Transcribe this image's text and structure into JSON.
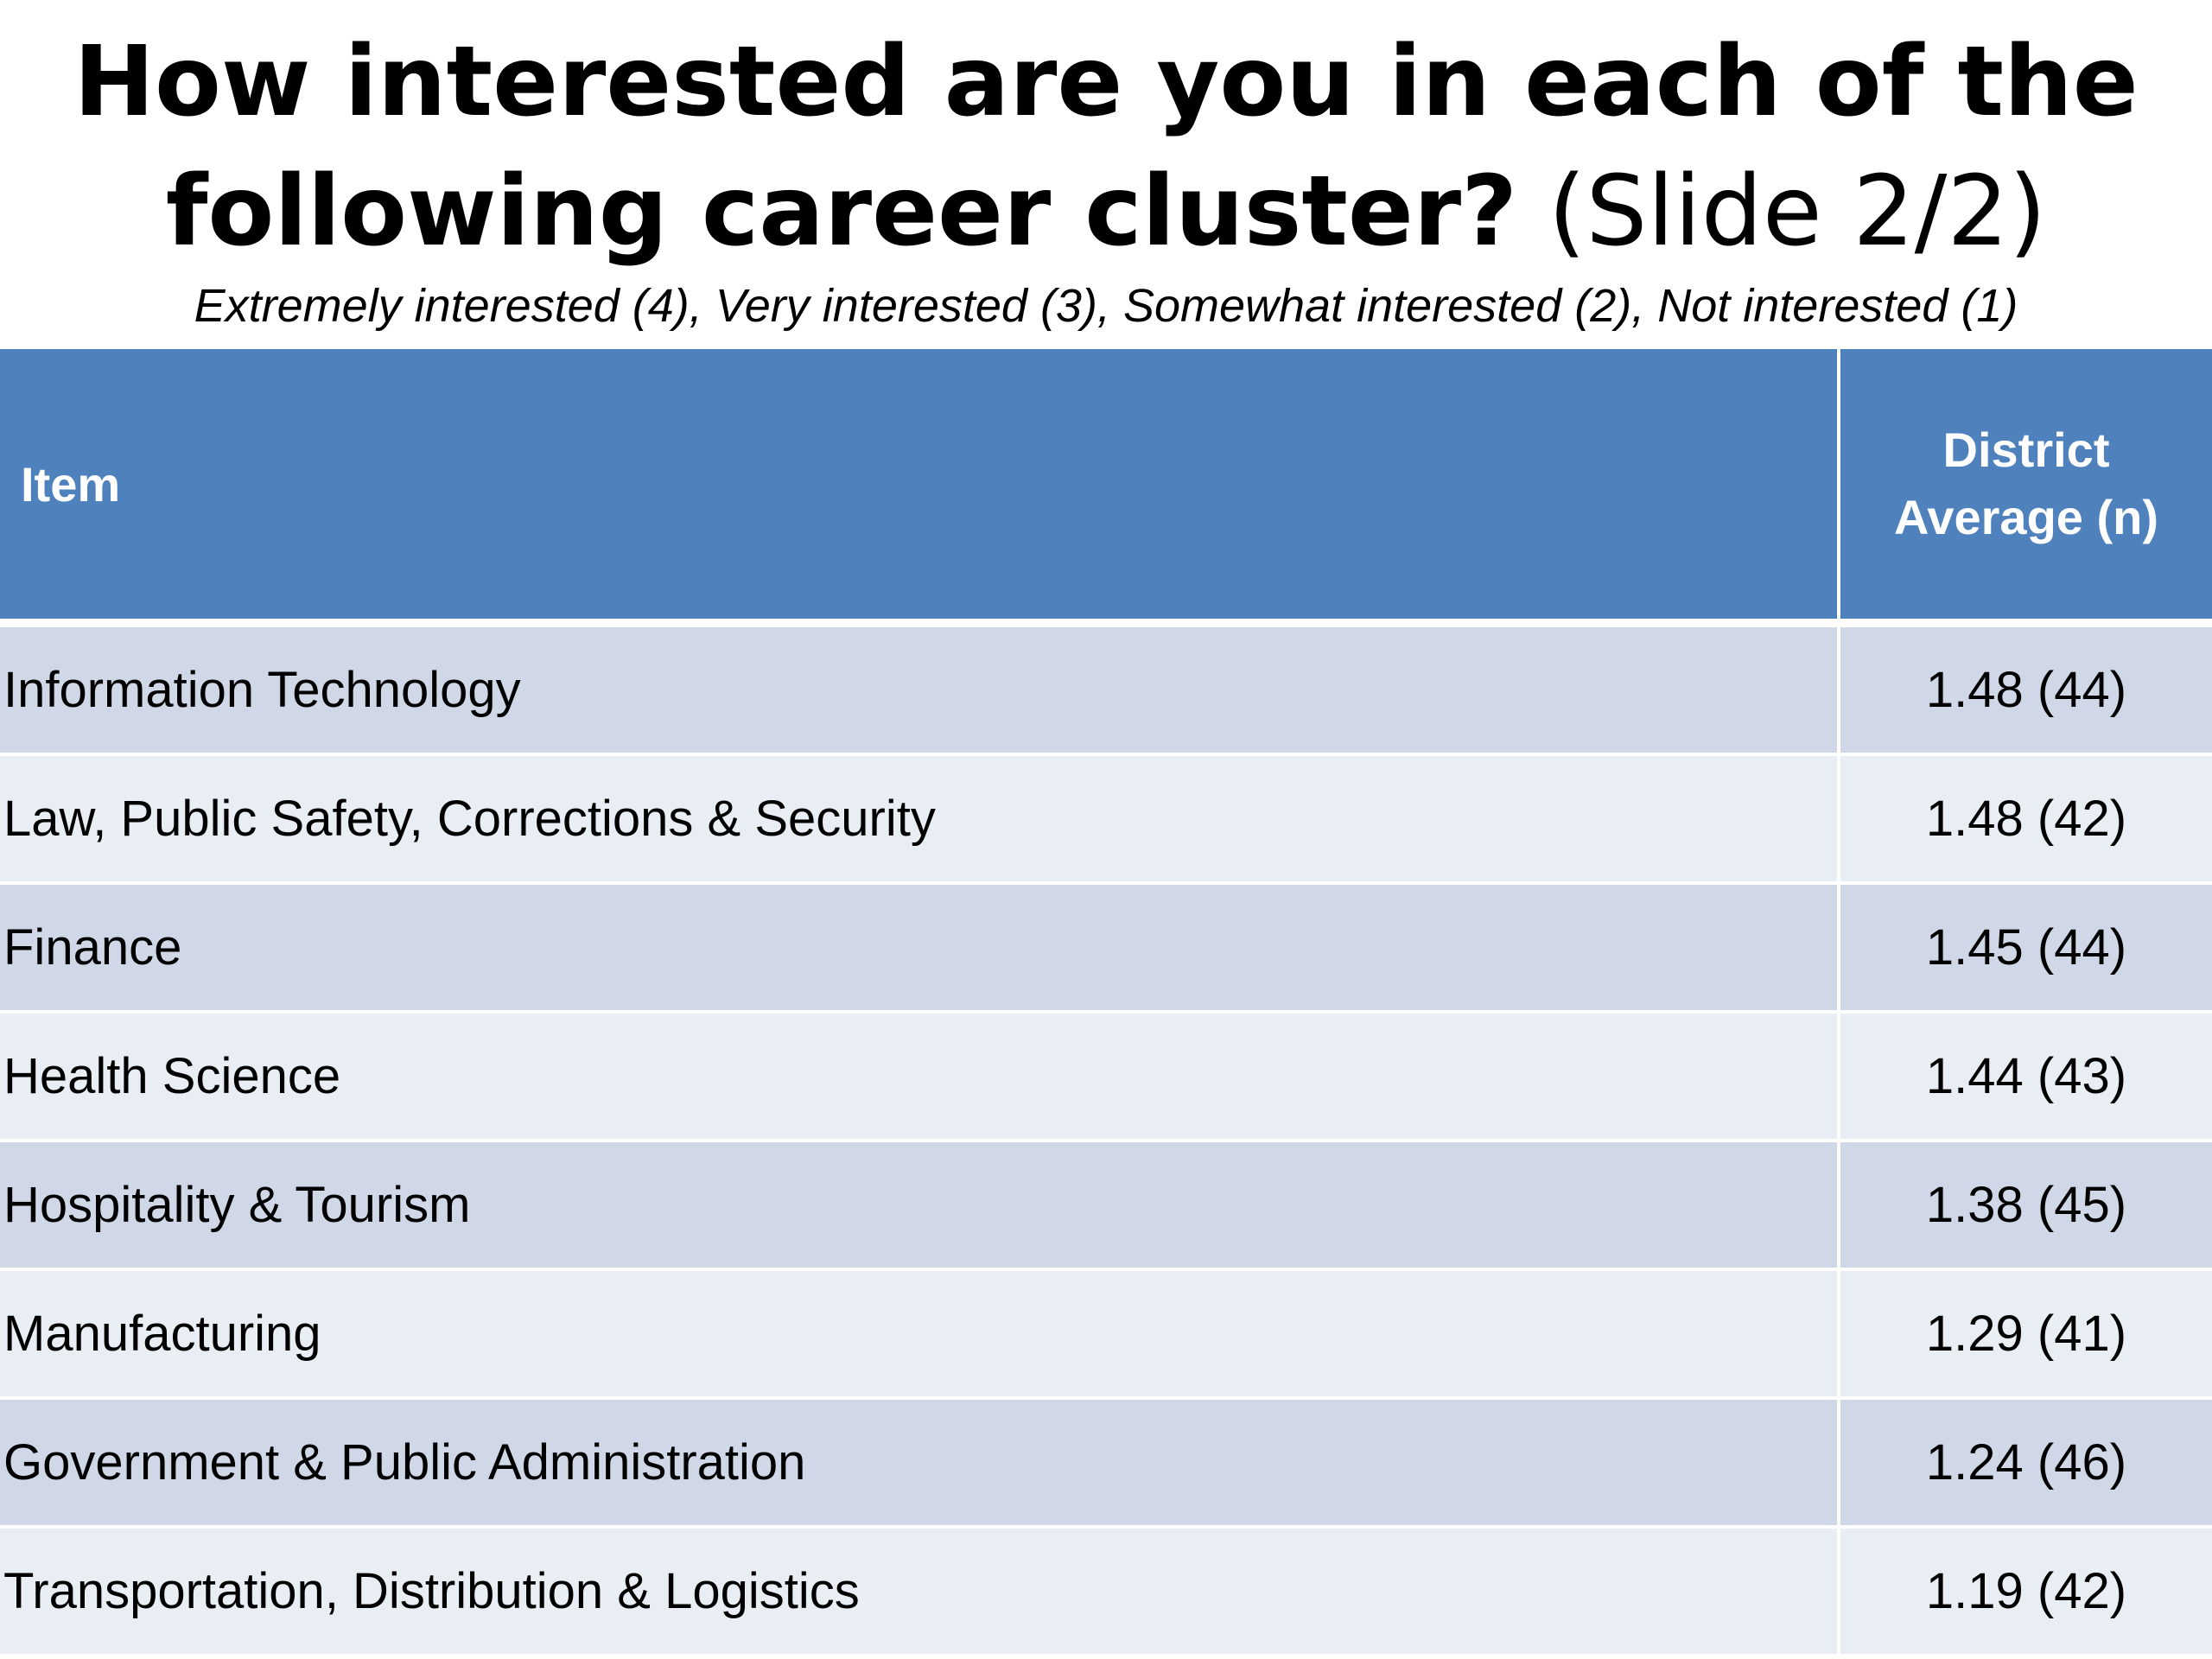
{
  "title": {
    "main": "How interested are you in each of the following career cluster?",
    "suffix": "(Slide 2/2)"
  },
  "subtitle": "Extremely interested (4), Very interested (3), Somewhat interested (2), Not interested (1)",
  "table": {
    "header": {
      "item": "Item",
      "value": "District Average (n)"
    },
    "rows": [
      {
        "item": "Information Technology",
        "value": "1.48 (44)"
      },
      {
        "item": "Law, Public Safety, Corrections & Security",
        "value": "1.48 (42)"
      },
      {
        "item": "Finance",
        "value": "1.45 (44)"
      },
      {
        "item": "Health Science",
        "value": "1.44 (43)"
      },
      {
        "item": "Hospitality & Tourism",
        "value": "1.38 (45)"
      },
      {
        "item": "Manufacturing",
        "value": "1.29 (41)"
      },
      {
        "item": "Government & Public Administration",
        "value": "1.24 (46)"
      },
      {
        "item": "Transportation, Distribution & Logistics",
        "value": "1.19 (42)"
      }
    ]
  },
  "colors": {
    "header_bg": "#4f81bd",
    "row_dark": "#d0d8e8",
    "row_light": "#e9edf4"
  }
}
